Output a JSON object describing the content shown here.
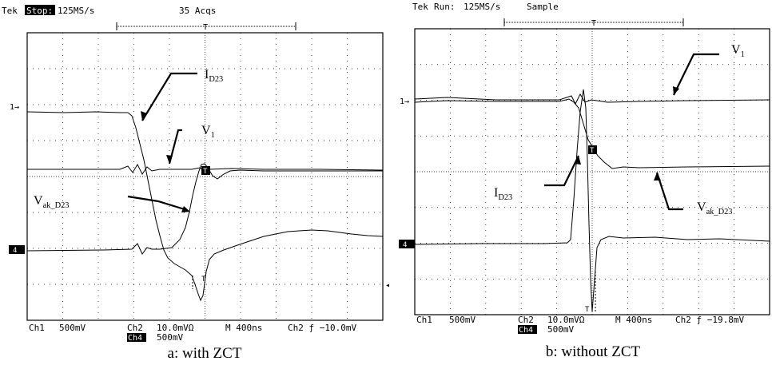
{
  "figure": {
    "panels": [
      {
        "id": "a",
        "header": {
          "brand": "Tek",
          "state": "Stop:",
          "rate": "125MS/s",
          "acq": "35 Acqs"
        },
        "marker_ch1": "1→",
        "marker_ch4": "4",
        "trigger_letter": "T",
        "cursor_letter": "T",
        "labels": {
          "id23": {
            "main": "I",
            "sub": "D23"
          },
          "v1": {
            "main": "V",
            "sub": "1"
          },
          "vak": {
            "main": "V",
            "sub": "ak_D23"
          }
        },
        "readout": {
          "ch1": "Ch1",
          "ch1_scale": "500mV",
          "ch2": "Ch2",
          "ch2_scale": "10.0mVΩ",
          "timebase": "M 400ns",
          "trig": "Ch2 ƒ −10.0mV",
          "ch4": "Ch4",
          "ch4_scale": "500mV"
        },
        "caption": "a: with ZCT"
      },
      {
        "id": "b",
        "header": {
          "brand": "Tek",
          "state": "Run:",
          "rate": "125MS/s",
          "acq": "Sample"
        },
        "marker_ch1": "1→",
        "marker_ch4": "4",
        "trigger_letter": "T",
        "cursor_letter": "T",
        "labels": {
          "v1": {
            "main": "V",
            "sub": "1"
          },
          "id23": {
            "main": "I",
            "sub": "D23"
          },
          "vak": {
            "main": "V",
            "sub": "ak_D23"
          }
        },
        "readout": {
          "ch1": "Ch1",
          "ch1_scale": "500mV",
          "ch2": "Ch2",
          "ch2_scale": "10.0mVΩ",
          "timebase": "M 400ns",
          "trig": "Ch2 ƒ −19.8mV",
          "ch4": "Ch4",
          "ch4_scale": "500mV"
        },
        "caption": "b: without ZCT"
      }
    ]
  }
}
